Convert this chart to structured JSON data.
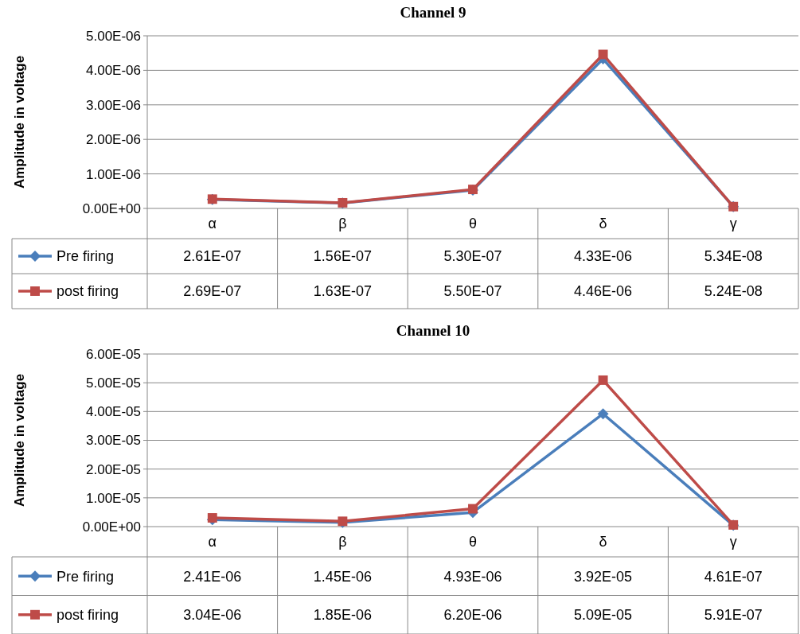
{
  "chart_data": [
    {
      "type": "line",
      "title": "Channel 9",
      "ylabel": "Amplitude in voltage",
      "categories": [
        "α",
        "β",
        "θ",
        "δ",
        "γ"
      ],
      "ylim": [
        0,
        5e-06
      ],
      "yticks": [
        {
          "value": 0,
          "label": "0.00E+00"
        },
        {
          "value": 1e-06,
          "label": "1.00E-06"
        },
        {
          "value": 2e-06,
          "label": "2.00E-06"
        },
        {
          "value": 3e-06,
          "label": "3.00E-06"
        },
        {
          "value": 4e-06,
          "label": "4.00E-06"
        },
        {
          "value": 5e-06,
          "label": "5.00E-06"
        }
      ],
      "grid": "y",
      "legend": "bottom",
      "series": [
        {
          "name": "Pre firing",
          "color": "#4a7ebb",
          "marker": "diamond",
          "values": [
            2.61e-07,
            1.56e-07,
            5.3e-07,
            4.33e-06,
            5.34e-08
          ],
          "value_labels": [
            "2.61E-07",
            "1.56E-07",
            "5.30E-07",
            "4.33E-06",
            "5.34E-08"
          ]
        },
        {
          "name": "post firing",
          "color": "#be4b48",
          "marker": "square",
          "values": [
            2.69e-07,
            1.63e-07,
            5.5e-07,
            4.46e-06,
            5.24e-08
          ],
          "value_labels": [
            "2.69E-07",
            "1.63E-07",
            "5.50E-07",
            "4.46E-06",
            "5.24E-08"
          ]
        }
      ]
    },
    {
      "type": "line",
      "title": "Channel 10",
      "ylabel": "Amplitude in voltage",
      "categories": [
        "α",
        "β",
        "θ",
        "δ",
        "γ"
      ],
      "ylim": [
        0,
        6e-05
      ],
      "yticks": [
        {
          "value": 0,
          "label": "0.00E+00"
        },
        {
          "value": 1e-05,
          "label": "1.00E-05"
        },
        {
          "value": 2e-05,
          "label": "2.00E-05"
        },
        {
          "value": 3e-05,
          "label": "3.00E-05"
        },
        {
          "value": 4e-05,
          "label": "4.00E-05"
        },
        {
          "value": 5e-05,
          "label": "5.00E-05"
        },
        {
          "value": 6e-05,
          "label": "6.00E-05"
        }
      ],
      "grid": "y",
      "legend": "bottom",
      "series": [
        {
          "name": "Pre firing",
          "color": "#4a7ebb",
          "marker": "diamond",
          "values": [
            2.41e-06,
            1.45e-06,
            4.93e-06,
            3.92e-05,
            4.61e-07
          ],
          "value_labels": [
            "2.41E-06",
            "1.45E-06",
            "4.93E-06",
            "3.92E-05",
            "4.61E-07"
          ]
        },
        {
          "name": "post firing",
          "color": "#be4b48",
          "marker": "square",
          "values": [
            3.04e-06,
            1.85e-06,
            6.2e-06,
            5.09e-05,
            5.91e-07
          ],
          "value_labels": [
            "3.04E-06",
            "1.85E-06",
            "6.20E-06",
            "5.09E-05",
            "5.91E-07"
          ]
        }
      ]
    }
  ]
}
